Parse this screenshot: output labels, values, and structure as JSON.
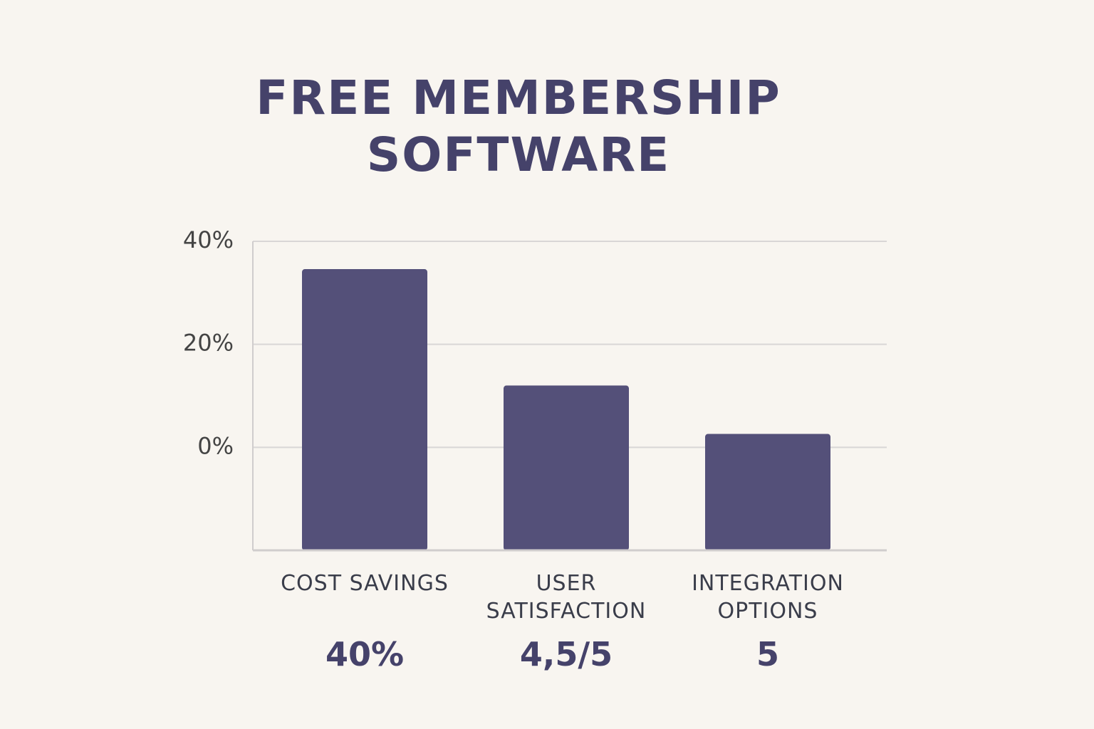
{
  "chart_data": {
    "type": "bar",
    "title": "FREE MEMBERSHIP SOFTWARE",
    "categories": [
      "COST SAVINGS",
      "USER SATISFACTION",
      "INTEGRATION OPTIONS"
    ],
    "values": [
      34.6,
      12,
      2.6
    ],
    "stats": [
      "40%",
      "4,5/5",
      "5"
    ],
    "color": "#545079",
    "ylim": [
      -20,
      40
    ],
    "yticks": [
      {
        "value": 0,
        "label": "0%"
      },
      {
        "value": 20,
        "label": "20%"
      },
      {
        "value": 40,
        "label": "40%"
      }
    ],
    "grid": true
  }
}
